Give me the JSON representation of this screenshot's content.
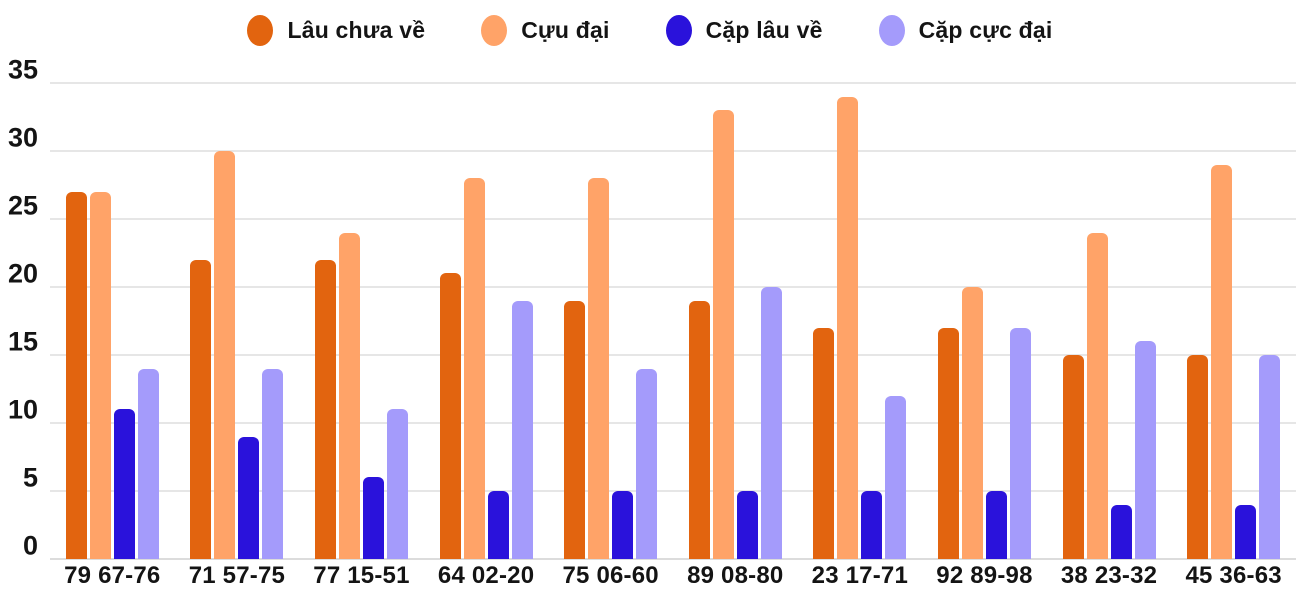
{
  "chart_data": {
    "type": "bar",
    "title": "",
    "xlabel": "",
    "ylabel": "",
    "categories": [
      "79 67-76",
      "71 57-75",
      "77 15-51",
      "64 02-20",
      "75 06-60",
      "89 08-80",
      "23 17-71",
      "92 89-98",
      "38 23-32",
      "45 36-63"
    ],
    "series": [
      {
        "name": "Lâu chưa về",
        "color": "#e2640f",
        "values": [
          27,
          22,
          22,
          21,
          19,
          19,
          17,
          17,
          15,
          15
        ]
      },
      {
        "name": "Cựu đại",
        "color": "#ffa368",
        "values": [
          27,
          30,
          24,
          28,
          28,
          33,
          34,
          20,
          24,
          29
        ]
      },
      {
        "name": "Cặp lâu về",
        "color": "#2a12db",
        "values": [
          11,
          9,
          6,
          5,
          5,
          5,
          5,
          5,
          4,
          4
        ]
      },
      {
        "name": "Cặp cực đại",
        "color": "#a49bfb",
        "values": [
          14,
          14,
          11,
          19,
          14,
          20,
          12,
          17,
          16,
          15
        ]
      }
    ],
    "ylim": [
      0,
      35
    ],
    "yticks": [
      0,
      5,
      10,
      15,
      20,
      25,
      30,
      35
    ],
    "grid": true,
    "legend_position": "top"
  },
  "colors": {
    "background": "#ffffff",
    "grid": "#e6e6e6",
    "text": "#141414"
  }
}
